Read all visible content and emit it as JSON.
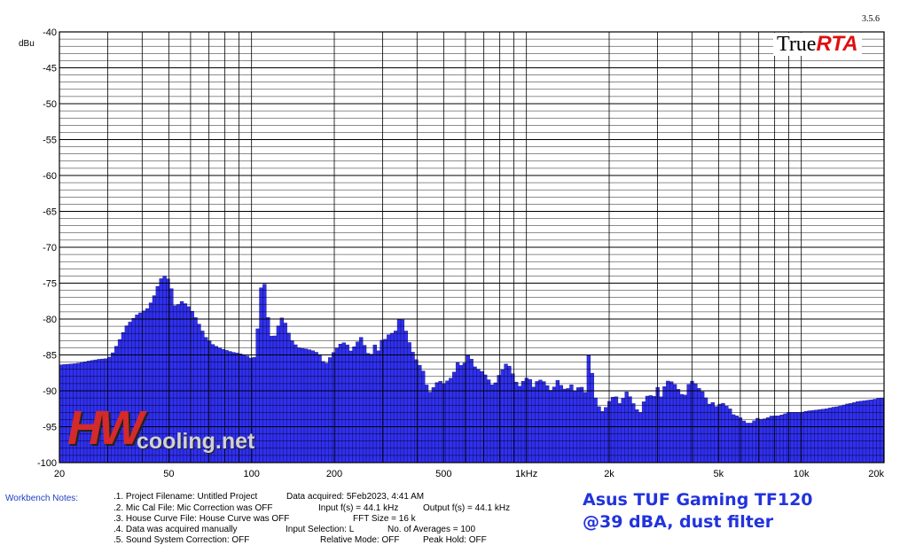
{
  "version": "3.5.6",
  "logo": {
    "part1": "True",
    "part2": "RTA"
  },
  "watermark": {
    "big": "HW",
    "small": "cooling.net"
  },
  "caption": {
    "line1": "Asus TUF Gaming TF120",
    "line2": "@39 dBA, dust filter"
  },
  "notes": {
    "label": "Workbench Notes:",
    "items": [
      ".1. Project Filename: Untitled Project",
      ".2. Mic Cal File: Mic Correction was OFF",
      ".3. House Curve File: House Curve was OFF",
      ".4. Data was acquired manually",
      ".5. Sound System Correction: OFF",
      "Data acquired: 5Feb2023, 4:41 AM",
      "Input f(s) = 44.1 kHz",
      "FFT Size = 16 k",
      "Input Selection: L",
      "Relative Mode: OFF",
      "Output f(s) = 44.1 kHz",
      "No. of Averages = 100",
      "Peak Hold: OFF"
    ]
  },
  "colors": {
    "bar": "#3030ec",
    "grid": "#000000",
    "noteLabel": "#1f3fbf",
    "caption": "#2233dd"
  },
  "chart_data": {
    "type": "bar",
    "xscale": "log",
    "xlim": [
      20,
      20000
    ],
    "ylim": [
      -100,
      -40
    ],
    "ylabel": "dBu",
    "grid": true,
    "yticks": [
      -40,
      -45,
      -50,
      -55,
      -60,
      -65,
      -70,
      -75,
      -80,
      -85,
      -90,
      -95,
      -100
    ],
    "xticks": [
      {
        "value": 20,
        "label": "20"
      },
      {
        "value": 50,
        "label": "50"
      },
      {
        "value": 100,
        "label": "100"
      },
      {
        "value": 200,
        "label": "200"
      },
      {
        "value": 500,
        "label": "500"
      },
      {
        "value": 1000,
        "label": "1kHz"
      },
      {
        "value": 2000,
        "label": "2k"
      },
      {
        "value": 5000,
        "label": "5k"
      },
      {
        "value": 10000,
        "label": "10k"
      },
      {
        "value": 20000,
        "label": "20k"
      }
    ],
    "points": [
      [
        20,
        -86.4
      ],
      [
        23,
        -86.2
      ],
      [
        26,
        -85.8
      ],
      [
        28,
        -85.6
      ],
      [
        30,
        -85.5
      ],
      [
        31,
        -85.0
      ],
      [
        32,
        -84.0
      ],
      [
        33,
        -83.0
      ],
      [
        34,
        -82.0
      ],
      [
        35,
        -81.0
      ],
      [
        36,
        -80.5
      ],
      [
        37,
        -80.0
      ],
      [
        38,
        -79.5
      ],
      [
        40,
        -79.0
      ],
      [
        42,
        -78.5
      ],
      [
        44,
        -77.0
      ],
      [
        45,
        -76.0
      ],
      [
        46,
        -75.0
      ],
      [
        47,
        -74.3
      ],
      [
        48,
        -74.0
      ],
      [
        49,
        -74.2
      ],
      [
        50,
        -74.5
      ],
      [
        51,
        -75.5
      ],
      [
        52,
        -77.5
      ],
      [
        53,
        -78.5
      ],
      [
        54,
        -78.0
      ],
      [
        56,
        -77.5
      ],
      [
        58,
        -78.0
      ],
      [
        60,
        -78.5
      ],
      [
        62,
        -79.5
      ],
      [
        65,
        -81.0
      ],
      [
        68,
        -82.5
      ],
      [
        72,
        -83.5
      ],
      [
        76,
        -84.0
      ],
      [
        80,
        -84.3
      ],
      [
        85,
        -84.6
      ],
      [
        90,
        -84.8
      ],
      [
        95,
        -85.0
      ],
      [
        100,
        -85.5
      ],
      [
        103,
        -85.3
      ],
      [
        105,
        -82.0
      ],
      [
        107,
        -77.0
      ],
      [
        110,
        -74.0
      ],
      [
        112,
        -75.5
      ],
      [
        114,
        -79.0
      ],
      [
        117,
        -82.0
      ],
      [
        120,
        -83.0
      ],
      [
        125,
        -81.0
      ],
      [
        130,
        -79.5
      ],
      [
        135,
        -81.5
      ],
      [
        140,
        -83.0
      ],
      [
        148,
        -84.0
      ],
      [
        160,
        -84.2
      ],
      [
        170,
        -84.5
      ],
      [
        178,
        -85.0
      ],
      [
        185,
        -86.5
      ],
      [
        192,
        -85.5
      ],
      [
        200,
        -84.5
      ],
      [
        210,
        -83.5
      ],
      [
        220,
        -83.2
      ],
      [
        230,
        -84.5
      ],
      [
        240,
        -83.5
      ],
      [
        250,
        -82.5
      ],
      [
        260,
        -84.0
      ],
      [
        270,
        -85.5
      ],
      [
        280,
        -83.5
      ],
      [
        290,
        -84.5
      ],
      [
        300,
        -82.5
      ],
      [
        310,
        -83.0
      ],
      [
        320,
        -81.5
      ],
      [
        330,
        -82.5
      ],
      [
        340,
        -80.5
      ],
      [
        350,
        -79.5
      ],
      [
        360,
        -81.0
      ],
      [
        370,
        -82.5
      ],
      [
        380,
        -84.0
      ],
      [
        395,
        -85.5
      ],
      [
        410,
        -86.5
      ],
      [
        425,
        -87.5
      ],
      [
        440,
        -90.5
      ],
      [
        460,
        -89.5
      ],
      [
        480,
        -88.5
      ],
      [
        500,
        -89.0
      ],
      [
        520,
        -88.5
      ],
      [
        540,
        -88.0
      ],
      [
        560,
        -86.0
      ],
      [
        580,
        -86.5
      ],
      [
        600,
        -86.0
      ],
      [
        620,
        -84.5
      ],
      [
        640,
        -86.5
      ],
      [
        670,
        -87.0
      ],
      [
        700,
        -87.5
      ],
      [
        730,
        -88.5
      ],
      [
        760,
        -89.5
      ],
      [
        790,
        -88.0
      ],
      [
        820,
        -87.0
      ],
      [
        850,
        -86.0
      ],
      [
        880,
        -87.0
      ],
      [
        910,
        -88.5
      ],
      [
        940,
        -89.5
      ],
      [
        980,
        -88.5
      ],
      [
        1020,
        -88.0
      ],
      [
        1060,
        -89.5
      ],
      [
        1100,
        -88.5
      ],
      [
        1140,
        -88.5
      ],
      [
        1180,
        -89.0
      ],
      [
        1220,
        -90.0
      ],
      [
        1260,
        -89.5
      ],
      [
        1300,
        -88.5
      ],
      [
        1350,
        -89.5
      ],
      [
        1400,
        -90.0
      ],
      [
        1450,
        -89.0
      ],
      [
        1500,
        -90.0
      ],
      [
        1550,
        -89.5
      ],
      [
        1600,
        -89.5
      ],
      [
        1650,
        -90.5
      ],
      [
        1700,
        -82.5
      ],
      [
        1750,
        -90.0
      ],
      [
        1820,
        -92.0
      ],
      [
        1900,
        -93.0
      ],
      [
        2000,
        -91.5
      ],
      [
        2100,
        -90.5
      ],
      [
        2200,
        -92.0
      ],
      [
        2300,
        -90.0
      ],
      [
        2400,
        -91.0
      ],
      [
        2500,
        -92.5
      ],
      [
        2600,
        -93.0
      ],
      [
        2700,
        -91.0
      ],
      [
        2800,
        -90.5
      ],
      [
        2900,
        -91.0
      ],
      [
        3000,
        -89.5
      ],
      [
        3100,
        -91.0
      ],
      [
        3200,
        -89.0
      ],
      [
        3300,
        -88.5
      ],
      [
        3450,
        -89.0
      ],
      [
        3600,
        -90.0
      ],
      [
        3750,
        -91.0
      ],
      [
        3900,
        -89.0
      ],
      [
        4050,
        -88.5
      ],
      [
        4200,
        -89.5
      ],
      [
        4350,
        -90.0
      ],
      [
        4500,
        -91.0
      ],
      [
        4650,
        -92.0
      ],
      [
        4800,
        -91.5
      ],
      [
        4950,
        -92.5
      ],
      [
        5100,
        -91.5
      ],
      [
        5300,
        -92.0
      ],
      [
        5500,
        -92.5
      ],
      [
        5700,
        -93.5
      ],
      [
        5900,
        -93.5
      ],
      [
        6100,
        -94.0
      ],
      [
        6300,
        -94.5
      ],
      [
        6600,
        -94.5
      ],
      [
        6900,
        -93.8
      ],
      [
        7200,
        -94.0
      ],
      [
        7500,
        -93.8
      ],
      [
        7800,
        -93.5
      ],
      [
        8200,
        -93.5
      ],
      [
        8600,
        -93.3
      ],
      [
        9000,
        -93.0
      ],
      [
        9500,
        -93.0
      ],
      [
        10000,
        -93.0
      ],
      [
        10600,
        -92.8
      ],
      [
        11200,
        -92.7
      ],
      [
        11800,
        -92.6
      ],
      [
        12400,
        -92.5
      ],
      [
        13000,
        -92.3
      ],
      [
        13600,
        -92.2
      ],
      [
        14200,
        -92.0
      ],
      [
        14800,
        -91.8
      ],
      [
        15400,
        -91.7
      ],
      [
        16000,
        -91.5
      ],
      [
        16800,
        -91.4
      ],
      [
        17600,
        -91.3
      ],
      [
        18400,
        -91.2
      ],
      [
        19200,
        -91.0
      ],
      [
        20000,
        -91.0
      ]
    ]
  }
}
